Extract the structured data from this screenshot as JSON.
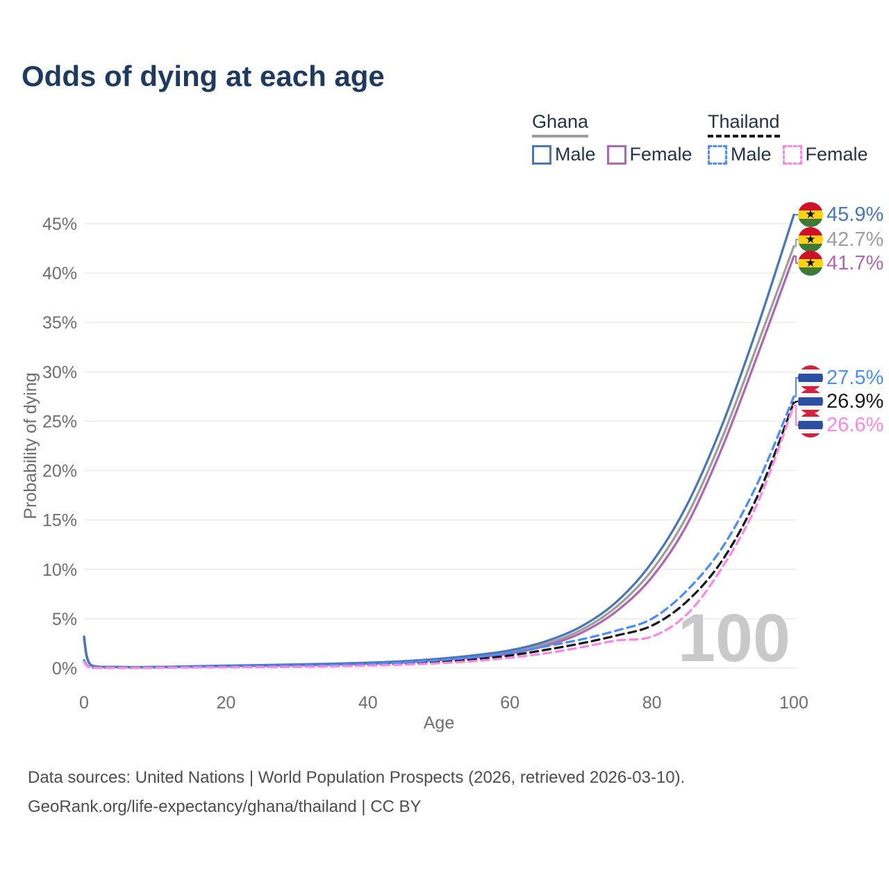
{
  "title": "Odds of dying at each age",
  "legend": {
    "groups": [
      {
        "country": "Ghana",
        "line_style": "solid",
        "underline_color": "#9e9e9e",
        "items": [
          {
            "label": "Male",
            "color": "#4a77b4"
          },
          {
            "label": "Female",
            "color": "#ae68ae"
          }
        ]
      },
      {
        "country": "Thailand",
        "line_style": "dashed",
        "underline_color": "#1a1a1a",
        "items": [
          {
            "label": "Male",
            "color": "#4d8df5"
          },
          {
            "label": "Female",
            "color": "#fb87e6"
          }
        ]
      }
    ]
  },
  "chart_data": {
    "type": "line",
    "title": "Odds of dying at each age",
    "xlabel": "Age",
    "ylabel": "Probability of dying",
    "xlim": [
      0,
      100
    ],
    "ylim": [
      0,
      46.5
    ],
    "x_ticks": [
      0,
      20,
      40,
      60,
      80,
      100
    ],
    "y_ticks": [
      0,
      5,
      10,
      15,
      20,
      25,
      30,
      35,
      40,
      45
    ],
    "y_tick_labels": [
      "0%",
      "5%",
      "10%",
      "15%",
      "20%",
      "25%",
      "30%",
      "35%",
      "40%",
      "45%"
    ],
    "grid": "horizontal",
    "legend_position": "top-right",
    "watermark": "100",
    "x": [
      0,
      1,
      5,
      10,
      15,
      20,
      25,
      30,
      35,
      40,
      45,
      50,
      55,
      60,
      65,
      70,
      75,
      80,
      85,
      90,
      95,
      100
    ],
    "series": [
      {
        "name": "Ghana Combined",
        "country": "Ghana",
        "sex": "combined",
        "color": "#9e9e9e",
        "dashed": false,
        "end_value": 42.7,
        "end_label": "42.7%",
        "values": [
          3.05,
          0.28,
          0.11,
          0.11,
          0.16,
          0.22,
          0.28,
          0.34,
          0.41,
          0.5,
          0.64,
          0.87,
          1.18,
          1.62,
          2.45,
          3.85,
          6.2,
          9.9,
          15.5,
          23.5,
          33.0,
          42.7
        ]
      },
      {
        "name": "Ghana Female",
        "country": "Ghana",
        "sex": "female",
        "color": "#ae68ae",
        "dashed": false,
        "end_value": 41.7,
        "end_label": "41.7%",
        "values": [
          2.9,
          0.26,
          0.1,
          0.1,
          0.14,
          0.2,
          0.25,
          0.3,
          0.37,
          0.46,
          0.58,
          0.8,
          1.08,
          1.48,
          2.25,
          3.55,
          5.75,
          9.2,
          14.6,
          22.5,
          31.9,
          41.7
        ]
      },
      {
        "name": "Ghana Male",
        "country": "Ghana",
        "sex": "male",
        "color": "#4a77b4",
        "dashed": false,
        "end_value": 45.9,
        "end_label": "45.9%",
        "values": [
          3.2,
          0.3,
          0.12,
          0.12,
          0.18,
          0.25,
          0.31,
          0.38,
          0.45,
          0.55,
          0.7,
          0.95,
          1.3,
          1.8,
          2.7,
          4.2,
          6.7,
          10.7,
          16.6,
          24.8,
          34.8,
          45.9
        ]
      },
      {
        "name": "Thailand Combined",
        "country": "Thailand",
        "sex": "combined",
        "color": "#1a1a1a",
        "dashed": true,
        "end_value": 26.9,
        "end_label": "26.9%",
        "values": [
          0.72,
          0.055,
          0.027,
          0.04,
          0.09,
          0.13,
          0.16,
          0.2,
          0.25,
          0.33,
          0.46,
          0.64,
          0.9,
          1.28,
          1.85,
          2.5,
          3.3,
          4.3,
          6.8,
          11.0,
          17.6,
          26.9
        ]
      },
      {
        "name": "Thailand Male",
        "country": "Thailand",
        "sex": "male",
        "color": "#4d8df5",
        "dashed": true,
        "end_value": 27.5,
        "end_label": "27.5%",
        "values": [
          0.8,
          0.06,
          0.03,
          0.05,
          0.12,
          0.18,
          0.22,
          0.26,
          0.32,
          0.42,
          0.58,
          0.8,
          1.1,
          1.55,
          2.2,
          2.9,
          3.8,
          5.0,
          7.9,
          12.3,
          18.9,
          27.5
        ]
      },
      {
        "name": "Thailand Female",
        "country": "Thailand",
        "sex": "female",
        "color": "#fb87e6",
        "dashed": true,
        "end_value": 26.6,
        "end_label": "26.6%",
        "values": [
          0.64,
          0.05,
          0.025,
          0.035,
          0.06,
          0.08,
          0.1,
          0.13,
          0.18,
          0.25,
          0.35,
          0.5,
          0.72,
          1.05,
          1.5,
          2.1,
          2.8,
          3.2,
          5.5,
          10.3,
          16.9,
          26.6
        ]
      }
    ]
  },
  "flags": {
    "ghana": {
      "stripes": [
        "#ce1126",
        "#fcd116",
        "#3d7a37"
      ],
      "star_color": "#111111"
    },
    "thailand": {
      "stripes": [
        "#d0243c",
        "#f5f5f5",
        "#2d4fa2"
      ]
    }
  },
  "footer": {
    "line1": "Data sources: United Nations | World Population Prospects (2026, retrieved 2026-03-10).",
    "line2": "GeoRank.org/life-expectancy/ghana/thailand | CC BY"
  },
  "colors": {
    "title": "#1e3a5f",
    "axis_text": "#6e6e6e",
    "grid": "#ebebeb",
    "watermark": "#c9c9c9",
    "legend_text": "#24334a",
    "footer_text": "#4d4d4d"
  }
}
